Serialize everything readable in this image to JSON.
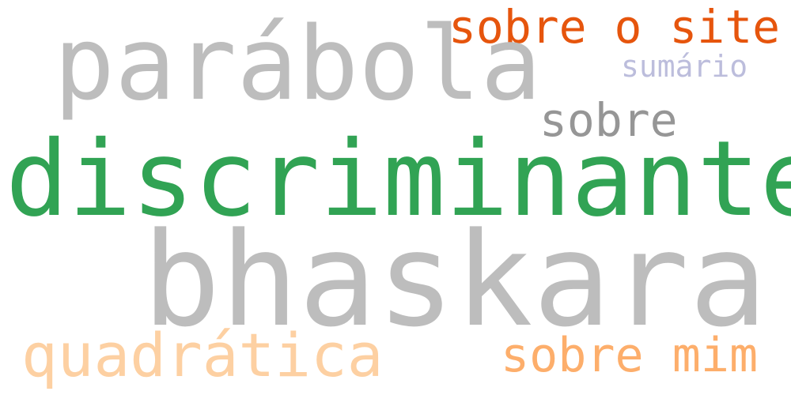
{
  "words": [
    {
      "id": "sobre-o-site",
      "text": "sobre o site",
      "color": "#e6550d"
    },
    {
      "id": "parabola",
      "text": "parábola",
      "color": "#bdbdbd"
    },
    {
      "id": "sumario",
      "text": "sumário",
      "color": "#bcbddc"
    },
    {
      "id": "sobre",
      "text": "sobre",
      "color": "#969696"
    },
    {
      "id": "discriminante",
      "text": "discriminante",
      "color": "#31a354"
    },
    {
      "id": "bhaskara",
      "text": "bhaskara",
      "color": "#bdbdbd"
    },
    {
      "id": "quadratica",
      "text": "quadrática",
      "color": "#fdd0a2"
    },
    {
      "id": "sobre-mim",
      "text": "sobre mim",
      "color": "#fdae6b"
    }
  ]
}
